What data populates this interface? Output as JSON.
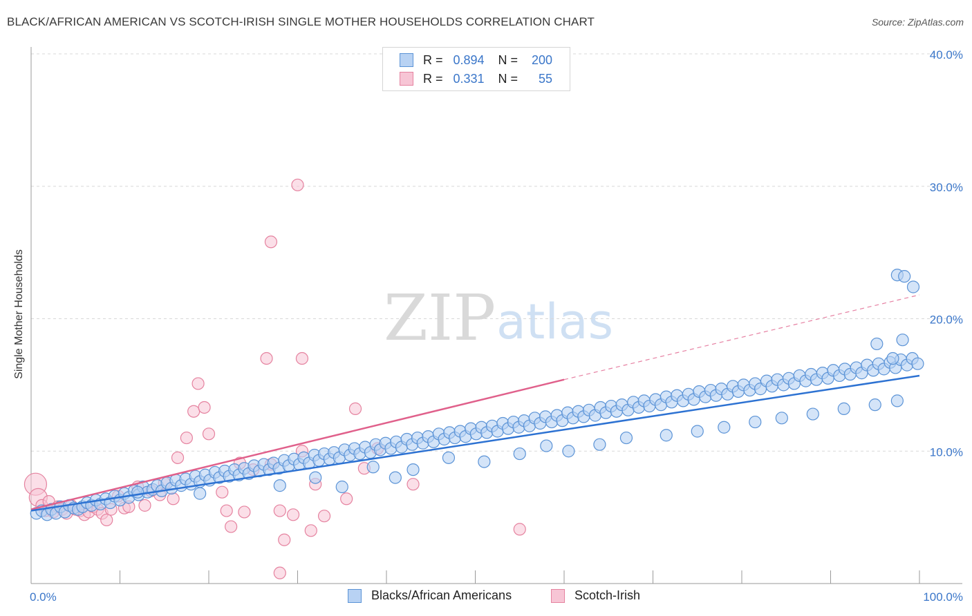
{
  "header": {
    "title": "BLACK/AFRICAN AMERICAN VS SCOTCH-IRISH SINGLE MOTHER HOUSEHOLDS CORRELATION CHART",
    "source": "Source: ZipAtlas.com"
  },
  "watermark": {
    "zip": "ZIP",
    "atlas": "atlas"
  },
  "colors": {
    "blue_fill": "#b8d2f3",
    "blue_stroke": "#5b93d6",
    "blue_line": "#2d72d2",
    "pink_fill": "#f7c5d5",
    "pink_stroke": "#e5829f",
    "pink_line": "#e0608b",
    "tick_text": "#3a76c9",
    "grid": "#d8d8d8"
  },
  "legend": {
    "rows": [
      {
        "r_label": "R =",
        "r_value": "0.894",
        "n_label": "N =",
        "n_value": "200"
      },
      {
        "r_label": "R =",
        "r_value": "0.331",
        "n_label": "N =",
        "n_value": "55"
      }
    ]
  },
  "chart_data": {
    "type": "scatter",
    "title": "BLACK/AFRICAN AMERICAN VS SCOTCH-IRISH SINGLE MOTHER HOUSEHOLDS CORRELATION CHART",
    "xlabel": "",
    "ylabel": "Single Mother Households",
    "xlim": [
      0,
      100
    ],
    "ylim": [
      0,
      40
    ],
    "x_tick_labels": [
      "0.0%",
      "100.0%"
    ],
    "y_ticks": [
      10,
      20,
      30,
      40
    ],
    "y_tick_labels": [
      "10.0%",
      "20.0%",
      "30.0%",
      "40.0%"
    ],
    "grid": true,
    "series": [
      {
        "name": "Blacks/African Americans",
        "R": 0.894,
        "N": 200,
        "trend": {
          "x": [
            0,
            100
          ],
          "y": [
            5.5,
            15.7
          ]
        },
        "points": [
          [
            0.6,
            5.3
          ],
          [
            1.2,
            5.5
          ],
          [
            1.8,
            5.2
          ],
          [
            2.3,
            5.6
          ],
          [
            2.8,
            5.3
          ],
          [
            3.3,
            5.8
          ],
          [
            3.8,
            5.4
          ],
          [
            4.3,
            5.9
          ],
          [
            4.8,
            5.7
          ],
          [
            5.3,
            5.6
          ],
          [
            5.8,
            5.8
          ],
          [
            6.3,
            6.1
          ],
          [
            6.8,
            5.9
          ],
          [
            7.3,
            6.3
          ],
          [
            7.8,
            6.0
          ],
          [
            8.4,
            6.4
          ],
          [
            8.9,
            6.1
          ],
          [
            9.4,
            6.6
          ],
          [
            10.0,
            6.3
          ],
          [
            10.5,
            6.8
          ],
          [
            11.0,
            6.5
          ],
          [
            11.6,
            7.0
          ],
          [
            12.1,
            6.7
          ],
          [
            12.6,
            7.3
          ],
          [
            13.1,
            6.9
          ],
          [
            13.7,
            7.1
          ],
          [
            14.2,
            7.4
          ],
          [
            14.7,
            7.0
          ],
          [
            15.3,
            7.6
          ],
          [
            15.8,
            7.2
          ],
          [
            16.3,
            7.8
          ],
          [
            16.9,
            7.4
          ],
          [
            17.4,
            7.9
          ],
          [
            18.0,
            7.5
          ],
          [
            18.5,
            8.1
          ],
          [
            19.0,
            7.7
          ],
          [
            19.6,
            8.2
          ],
          [
            20.1,
            7.8
          ],
          [
            20.7,
            8.4
          ],
          [
            21.2,
            8.0
          ],
          [
            21.8,
            8.5
          ],
          [
            22.3,
            8.1
          ],
          [
            22.9,
            8.6
          ],
          [
            23.4,
            8.2
          ],
          [
            24.0,
            8.7
          ],
          [
            24.5,
            8.3
          ],
          [
            25.1,
            8.9
          ],
          [
            25.7,
            8.5
          ],
          [
            26.2,
            9.0
          ],
          [
            26.8,
            8.6
          ],
          [
            27.3,
            9.1
          ],
          [
            27.9,
            8.7
          ],
          [
            28.5,
            9.3
          ],
          [
            29.0,
            8.9
          ],
          [
            29.6,
            9.4
          ],
          [
            30.2,
            9.0
          ],
          [
            30.7,
            9.5
          ],
          [
            31.3,
            9.1
          ],
          [
            31.9,
            9.7
          ],
          [
            32.4,
            9.3
          ],
          [
            33.0,
            9.8
          ],
          [
            33.6,
            9.4
          ],
          [
            34.1,
            9.9
          ],
          [
            34.7,
            9.5
          ],
          [
            35.3,
            10.1
          ],
          [
            35.9,
            9.7
          ],
          [
            36.4,
            10.2
          ],
          [
            37.0,
            9.8
          ],
          [
            37.6,
            10.3
          ],
          [
            38.2,
            9.9
          ],
          [
            38.8,
            10.5
          ],
          [
            39.3,
            10.1
          ],
          [
            39.9,
            10.6
          ],
          [
            40.5,
            10.2
          ],
          [
            41.1,
            10.7
          ],
          [
            41.7,
            10.3
          ],
          [
            42.3,
            10.9
          ],
          [
            42.9,
            10.5
          ],
          [
            43.5,
            11.0
          ],
          [
            44.1,
            10.6
          ],
          [
            44.7,
            11.1
          ],
          [
            45.3,
            10.7
          ],
          [
            45.9,
            11.3
          ],
          [
            46.5,
            10.9
          ],
          [
            47.1,
            11.4
          ],
          [
            47.7,
            11.0
          ],
          [
            48.3,
            11.5
          ],
          [
            48.9,
            11.1
          ],
          [
            49.5,
            11.7
          ],
          [
            50.1,
            11.3
          ],
          [
            50.7,
            11.8
          ],
          [
            51.3,
            11.4
          ],
          [
            51.9,
            11.9
          ],
          [
            52.5,
            11.5
          ],
          [
            53.1,
            12.1
          ],
          [
            53.7,
            11.7
          ],
          [
            54.3,
            12.2
          ],
          [
            54.9,
            11.8
          ],
          [
            55.5,
            12.3
          ],
          [
            56.1,
            11.9
          ],
          [
            56.7,
            12.5
          ],
          [
            57.3,
            12.1
          ],
          [
            57.9,
            12.6
          ],
          [
            58.6,
            12.2
          ],
          [
            59.2,
            12.7
          ],
          [
            59.8,
            12.3
          ],
          [
            60.4,
            12.9
          ],
          [
            61.0,
            12.5
          ],
          [
            61.6,
            13.0
          ],
          [
            62.2,
            12.6
          ],
          [
            62.8,
            13.1
          ],
          [
            63.5,
            12.7
          ],
          [
            64.1,
            13.3
          ],
          [
            64.7,
            12.9
          ],
          [
            65.3,
            13.4
          ],
          [
            65.9,
            13.0
          ],
          [
            66.5,
            13.5
          ],
          [
            67.2,
            13.1
          ],
          [
            67.8,
            13.7
          ],
          [
            68.4,
            13.3
          ],
          [
            69.0,
            13.8
          ],
          [
            69.6,
            13.4
          ],
          [
            70.3,
            13.9
          ],
          [
            70.9,
            13.5
          ],
          [
            71.5,
            14.1
          ],
          [
            72.1,
            13.7
          ],
          [
            72.7,
            14.2
          ],
          [
            73.4,
            13.8
          ],
          [
            74.0,
            14.3
          ],
          [
            74.6,
            13.9
          ],
          [
            75.2,
            14.5
          ],
          [
            75.9,
            14.1
          ],
          [
            76.5,
            14.6
          ],
          [
            77.1,
            14.2
          ],
          [
            77.7,
            14.7
          ],
          [
            78.4,
            14.3
          ],
          [
            79.0,
            14.9
          ],
          [
            79.6,
            14.5
          ],
          [
            80.2,
            15.0
          ],
          [
            80.9,
            14.6
          ],
          [
            81.5,
            15.1
          ],
          [
            82.1,
            14.7
          ],
          [
            82.8,
            15.3
          ],
          [
            83.4,
            14.9
          ],
          [
            84.0,
            15.4
          ],
          [
            84.7,
            15.0
          ],
          [
            85.3,
            15.5
          ],
          [
            85.9,
            15.1
          ],
          [
            86.5,
            15.7
          ],
          [
            87.2,
            15.3
          ],
          [
            87.8,
            15.8
          ],
          [
            88.4,
            15.4
          ],
          [
            89.1,
            15.9
          ],
          [
            89.7,
            15.5
          ],
          [
            90.3,
            16.1
          ],
          [
            91.0,
            15.7
          ],
          [
            91.6,
            16.2
          ],
          [
            92.2,
            15.8
          ],
          [
            92.9,
            16.3
          ],
          [
            93.5,
            15.9
          ],
          [
            94.1,
            16.5
          ],
          [
            94.8,
            16.1
          ],
          [
            95.4,
            16.6
          ],
          [
            96.0,
            16.2
          ],
          [
            96.7,
            16.7
          ],
          [
            97.3,
            16.3
          ],
          [
            97.9,
            16.9
          ],
          [
            98.6,
            16.5
          ],
          [
            99.2,
            17.0
          ],
          [
            99.8,
            16.6
          ],
          [
            12.0,
            6.9
          ],
          [
            19.0,
            6.8
          ],
          [
            28.0,
            7.4
          ],
          [
            32.0,
            8.0
          ],
          [
            35.0,
            7.3
          ],
          [
            38.5,
            8.8
          ],
          [
            41.0,
            8.0
          ],
          [
            43.0,
            8.6
          ],
          [
            47.0,
            9.5
          ],
          [
            51.0,
            9.2
          ],
          [
            55.0,
            9.8
          ],
          [
            58.0,
            10.4
          ],
          [
            60.5,
            10.0
          ],
          [
            64.0,
            10.5
          ],
          [
            67.0,
            11.0
          ],
          [
            71.5,
            11.2
          ],
          [
            75.0,
            11.5
          ],
          [
            78.0,
            11.8
          ],
          [
            81.5,
            12.2
          ],
          [
            84.5,
            12.5
          ],
          [
            88.0,
            12.8
          ],
          [
            91.5,
            13.2
          ],
          [
            95.0,
            13.5
          ],
          [
            97.5,
            13.8
          ],
          [
            97.5,
            23.3
          ],
          [
            98.3,
            23.2
          ],
          [
            99.3,
            22.4
          ],
          [
            98.1,
            18.4
          ],
          [
            97.0,
            17.0
          ],
          [
            95.2,
            18.1
          ]
        ]
      },
      {
        "name": "Scotch-Irish",
        "R": 0.331,
        "N": 55,
        "trend": {
          "x": [
            0,
            60
          ],
          "y": [
            5.6,
            15.4
          ]
        },
        "trend_dashed": {
          "x": [
            60,
            100
          ],
          "y": [
            15.4,
            21.8
          ]
        },
        "points": [
          [
            0.5,
            7.5
          ],
          [
            0.8,
            6.5
          ],
          [
            1.2,
            5.9
          ],
          [
            1.6,
            5.5
          ],
          [
            2.0,
            6.2
          ],
          [
            2.5,
            5.4
          ],
          [
            3.0,
            5.8
          ],
          [
            3.5,
            5.6
          ],
          [
            4.0,
            5.3
          ],
          [
            4.5,
            5.9
          ],
          [
            5.0,
            5.6
          ],
          [
            5.5,
            5.5
          ],
          [
            6.0,
            5.2
          ],
          [
            6.5,
            5.4
          ],
          [
            7.0,
            5.8
          ],
          [
            7.5,
            5.6
          ],
          [
            8.0,
            5.3
          ],
          [
            8.5,
            4.8
          ],
          [
            9.0,
            5.6
          ],
          [
            9.8,
            6.6
          ],
          [
            10.5,
            5.7
          ],
          [
            11.0,
            5.8
          ],
          [
            12.0,
            7.3
          ],
          [
            12.8,
            5.9
          ],
          [
            13.5,
            7.0
          ],
          [
            14.5,
            6.7
          ],
          [
            15.0,
            7.6
          ],
          [
            16.0,
            6.4
          ],
          [
            16.5,
            9.5
          ],
          [
            17.5,
            11.0
          ],
          [
            18.3,
            13.0
          ],
          [
            18.8,
            15.1
          ],
          [
            19.5,
            13.3
          ],
          [
            20.0,
            11.3
          ],
          [
            21.5,
            6.9
          ],
          [
            22.0,
            5.5
          ],
          [
            22.5,
            4.3
          ],
          [
            23.5,
            9.1
          ],
          [
            24.0,
            5.4
          ],
          [
            25.0,
            8.6
          ],
          [
            26.5,
            17.0
          ],
          [
            27.0,
            9.0
          ],
          [
            28.0,
            5.5
          ],
          [
            28.5,
            3.3
          ],
          [
            29.5,
            5.2
          ],
          [
            30.5,
            10.0
          ],
          [
            31.5,
            4.0
          ],
          [
            32.0,
            7.5
          ],
          [
            33.0,
            5.1
          ],
          [
            35.5,
            6.4
          ],
          [
            36.5,
            13.2
          ],
          [
            37.5,
            8.7
          ],
          [
            39.0,
            10.2
          ],
          [
            43.0,
            7.5
          ],
          [
            55.0,
            4.1
          ],
          [
            27.0,
            25.8
          ],
          [
            30.0,
            30.1
          ],
          [
            30.5,
            17.0
          ],
          [
            28.0,
            0.8
          ]
        ]
      }
    ]
  },
  "bottom_legend": {
    "items": [
      {
        "label": "Blacks/African Americans"
      },
      {
        "label": "Scotch-Irish"
      }
    ]
  }
}
